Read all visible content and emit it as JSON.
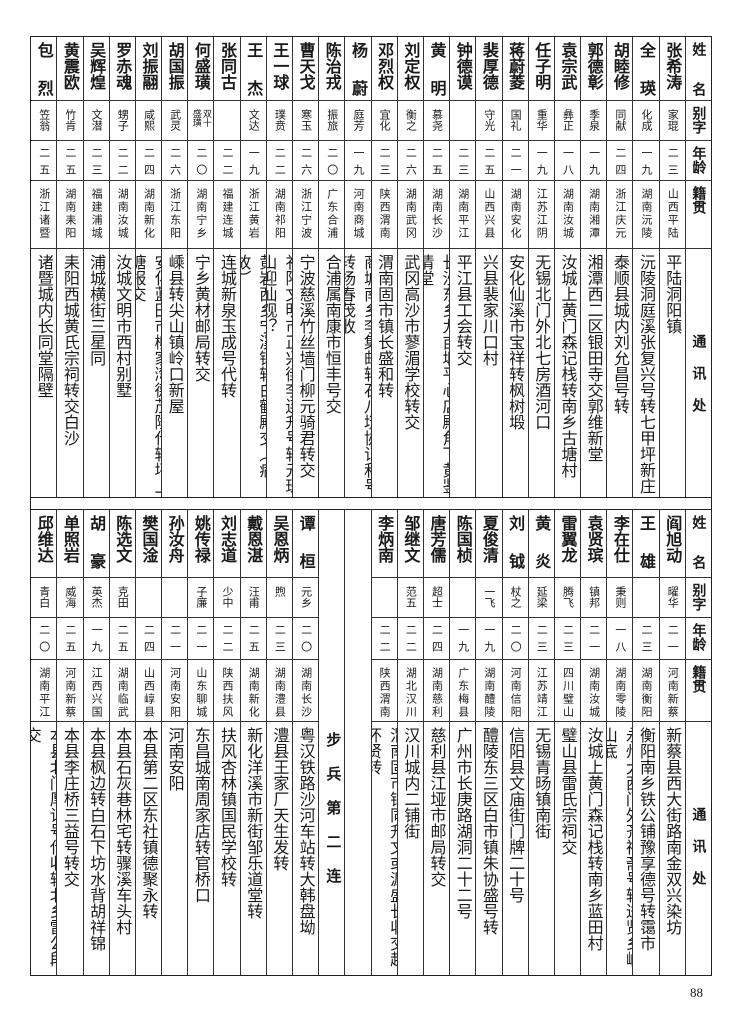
{
  "header": {
    "name": "姓名",
    "alias": "别字",
    "age": "年龄",
    "origin": "籍贯",
    "address": "通讯处"
  },
  "top_entries": [
    {
      "name": "张希涛",
      "alias": "家琨",
      "age": "二三",
      "origin": "山西平陆",
      "address": "平陆洞阳镇"
    },
    {
      "name": "全瑛",
      "alias": "化成",
      "age": "一九",
      "origin": "湖南沅陵",
      "address": "沅陵洞庭溪张复兴号转七甲坪新庄"
    },
    {
      "name": "胡睦修",
      "alias": "同献",
      "age": "二四",
      "origin": "浙江庆元",
      "address": "泰顺县城内刘允昌号转"
    },
    {
      "name": "郭德彰",
      "alias": "季泉",
      "age": "一九",
      "origin": "湖南湘潭",
      "address": "湘潭西二区银田寺交郭维新堂"
    },
    {
      "name": "袁宗武",
      "alias": "彝正",
      "age": "一八",
      "origin": "湖南汝城",
      "address": "汝城上黄门森记栈转南乡古塘村"
    },
    {
      "name": "任子明",
      "alias": "重华",
      "age": "一九",
      "origin": "江苏江阴",
      "address": "无锡北门外北七房酒河口"
    },
    {
      "name": "蒋蔚菱",
      "alias": "国礼",
      "age": "二一",
      "origin": "湖南安化",
      "address": "安化仙溪市宝祥转枫树塅"
    },
    {
      "name": "裴厚德",
      "alias": "守光",
      "age": "二五",
      "origin": "山西兴县",
      "address": "兴县裴家川口村"
    },
    {
      "name": "钟德谟",
      "alias": "",
      "age": "二三",
      "origin": "湖南平江",
      "address": "平江县工会转交"
    },
    {
      "name": "黄明",
      "alias": "慕尧",
      "age": "二五",
      "origin": "湖南长沙",
      "address": "长沙东乡九亩塅平心店殿角下黄鉴清堂"
    },
    {
      "name": "刘定权",
      "alias": "衡之",
      "age": "二六",
      "origin": "湖南武冈",
      "address": "武冈高沙市蓼湄学校转交"
    },
    {
      "name": "邓烈权",
      "alias": "宜化",
      "age": "二三",
      "origin": "陕西渭南",
      "address": "渭南固市镇长盛和转"
    },
    {
      "name": "杨蔚",
      "alias": "庭芳",
      "age": "一九",
      "origin": "河南商城",
      "address": "商城南乡李集邮转石八垯协记和号转杨春茂收"
    },
    {
      "name": "陈治戎",
      "alias": "振旅",
      "age": "二〇",
      "origin": "广东合浦",
      "address": "合浦属南康市恒丰号交"
    },
    {
      "name": "曹天戈",
      "alias": "寒玉",
      "age": "二六",
      "origin": "浙江宁波",
      "address": "宁波慈溪竹丝墙门柳元骑君转交"
    },
    {
      "name": "王一球",
      "alias": "璞贲",
      "age": "二二",
      "origin": "湖南祁阳",
      "address": "祁阳文明市正兴街李连升号转元珠山迎仙观？"
    },
    {
      "name": "王杰",
      "alias": "文达",
      "age": "一九",
      "origin": "浙江黄岩",
      "address": "黄岩西乡宁溪镇转白鹤殿交（病故）"
    },
    {
      "name": "张同古",
      "alias": "",
      "age": "二二",
      "origin": "福建连城",
      "address": "连城新泉玉成号代转"
    },
    {
      "name": "何盛璜",
      "alias": "双十盛璜",
      "age": "二〇",
      "origin": "湖南宁乡",
      "address": "宁乡黄材邮局转交"
    },
    {
      "name": "胡国振",
      "alias": "武灵",
      "age": "二六",
      "origin": "浙江东阳",
      "address": "嵊县转尖山镇岭口新屋"
    },
    {
      "name": "刘振翮",
      "alias": "咸熙",
      "age": "二四",
      "origin": "湖南新化",
      "address": "安化蓝田市柳家湾德茂隆代转坪上塘报交"
    },
    {
      "name": "罗赤魂",
      "alias": "甥子",
      "age": "二二",
      "origin": "湖南汝城",
      "address": "汝城文明市西村别墅"
    },
    {
      "name": "吴辉煌",
      "alias": "文潜",
      "age": "二三",
      "origin": "福建浦城",
      "address": "浦城横街三星同"
    },
    {
      "name": "黄震欧",
      "alias": "竹肯",
      "age": "二五",
      "origin": "湖南耒阳",
      "address": "耒阳西城黄氏宗祠转交白沙"
    },
    {
      "name": "包烈",
      "alias": "笠翁",
      "age": "二五",
      "origin": "浙江诸暨",
      "address": "诸暨城内长同堂隔壁"
    }
  ],
  "bottom_entries_right": [
    {
      "name": "阎旭动",
      "alias": "曜华",
      "age": "二一",
      "origin": "河南新蔡",
      "address": "新蔡县西大街路南金双兴染坊"
    },
    {
      "name": "王雄",
      "alias": "",
      "age": "二三",
      "origin": "湖南衡阳",
      "address": "衡阳南乡铁公铺豫享德号转霭市"
    },
    {
      "name": "李在仕",
      "alias": "秉则",
      "age": "一八",
      "origin": "湖南零陵",
      "address": "永州大西门外齐祥斋号转进贤乡嵋山底"
    },
    {
      "name": "袁贤瑸",
      "alias": "镇邦",
      "age": "二一",
      "origin": "湖南汝城",
      "address": "汝城上黄门森记栈转南乡蓝田村"
    },
    {
      "name": "雷翼龙",
      "alias": "腾飞",
      "age": "二三",
      "origin": "四川璧山",
      "address": "璧山县雷氏宗祠交"
    },
    {
      "name": "黄炎",
      "alias": "延梁",
      "age": "二三",
      "origin": "江苏靖江",
      "address": "无锡青旸镇南街"
    },
    {
      "name": "刘钺",
      "alias": "杖之",
      "age": "二〇",
      "origin": "河南信阳",
      "address": "信阳县文庙街门牌二十号"
    },
    {
      "name": "夏俊清",
      "alias": "一飞",
      "age": "一九",
      "origin": "湖南醴陵",
      "address": "醴陵东三区白市镇朱协盛号转"
    },
    {
      "name": "陈国桢",
      "alias": "",
      "age": "一九",
      "origin": "广东梅县",
      "address": "广州市长庚路湖洞二十二号"
    },
    {
      "name": "唐芳儒",
      "alias": "超士",
      "age": "二四",
      "origin": "湖南慈利",
      "address": "慈利县江垭市邮局转交"
    },
    {
      "name": "邹继文",
      "alias": "范五",
      "age": "二二",
      "origin": "湖北汉川",
      "address": "汉川城内二铺街"
    },
    {
      "name": "李炳南",
      "alias": "",
      "age": "二二",
      "origin": "陕西渭南",
      "address": "渭南固市镇同升文或源盛长收交赵怀贤转"
    }
  ],
  "unit_label": "步兵第二连",
  "bottom_entries_left": [
    {
      "name": "谭桓",
      "alias": "元乡",
      "age": "二〇",
      "origin": "湖南长沙",
      "address": "粤汉铁路沙河车站转大韩盘坳"
    },
    {
      "name": "吴恩炳",
      "alias": "煦",
      "age": "二三",
      "origin": "湖南澧县",
      "address": "澧县王家厂天生发转"
    },
    {
      "name": "戴恩湛",
      "alias": "汪甫",
      "age": "二五",
      "origin": "湖南新化",
      "address": "新化洋溪市新街邹乐道堂转"
    },
    {
      "name": "刘志道",
      "alias": "少中",
      "age": "二二",
      "origin": "陕西扶风",
      "address": "扶风杏林镇国民学校转"
    },
    {
      "name": "姚传禄",
      "alias": "子廉",
      "age": "二一",
      "origin": "山东聊城",
      "address": "东昌城南周家店转官桥口"
    },
    {
      "name": "孙汝舟",
      "alias": "",
      "age": "二一",
      "origin": "河南安阳",
      "address": "河南安阳"
    },
    {
      "name": "樊国淦",
      "alias": "",
      "age": "二四",
      "origin": "山西崞县",
      "address": "本县第二区东社镇德聚永转"
    },
    {
      "name": "陈选文",
      "alias": "克田",
      "age": "二五",
      "origin": "湖南临武",
      "address": "本县石灰巷林宅转骤溪车头村"
    },
    {
      "name": "胡豪",
      "alias": "英杰",
      "age": "一九",
      "origin": "江西兴国",
      "address": "本县枫边转白石下坊水背胡祥锦"
    },
    {
      "name": "单照岩",
      "alias": "威海",
      "age": "二五",
      "origin": "河南新蔡",
      "address": "本县李庄桥三益号转交"
    },
    {
      "name": "邱维达",
      "alias": "青白",
      "age": "二〇",
      "origin": "湖南平江",
      "address": "本县北门厚记号代收转北乡雷公段交"
    }
  ],
  "page_number": "88"
}
